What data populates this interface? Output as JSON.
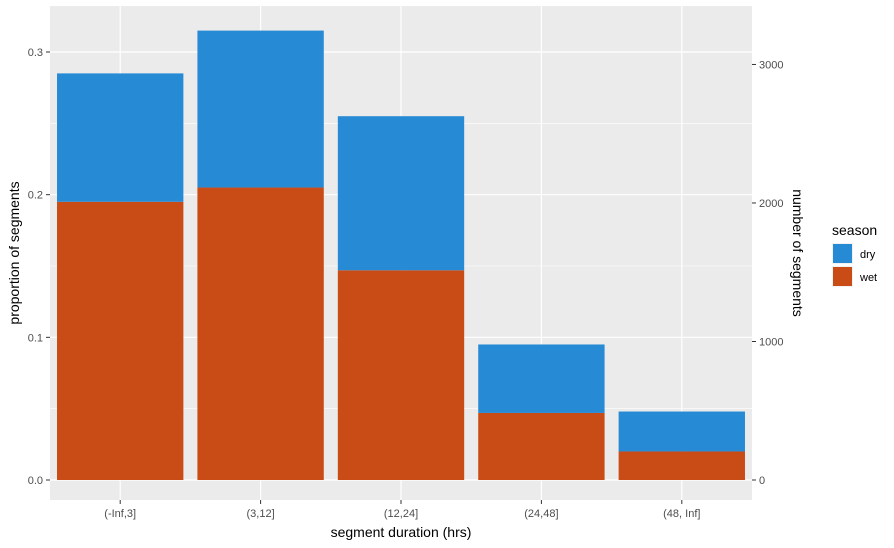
{
  "chart_data": {
    "type": "bar",
    "stacked": true,
    "categories": [
      "(-Inf,3]",
      "(3,12]",
      "(12,24]",
      "(24,48]",
      "(48, Inf]"
    ],
    "series": [
      {
        "name": "wet",
        "values": [
          0.195,
          0.205,
          0.147,
          0.047,
          0.02
        ],
        "color": "#C94B16"
      },
      {
        "name": "dry",
        "values": [
          0.09,
          0.11,
          0.108,
          0.048,
          0.028
        ],
        "color": "#278AD5"
      }
    ],
    "xlabel": "segment duration (hrs)",
    "ylabel": "proportion of segments",
    "y2label": "number of segments",
    "ylim": [
      0,
      0.33
    ],
    "y_ticks": [
      0.0,
      0.1,
      0.2,
      0.3
    ],
    "y_tick_labels": [
      "0.0",
      "0.1",
      "0.2",
      "0.3"
    ],
    "y2_ticks": [
      0,
      1000,
      2000,
      3000
    ],
    "y2_per_unit": 10300,
    "grid": true,
    "panel_background": "#EBEBEB",
    "legend": {
      "title": "season",
      "position": "right",
      "entries": [
        "dry",
        "wet"
      ]
    }
  }
}
